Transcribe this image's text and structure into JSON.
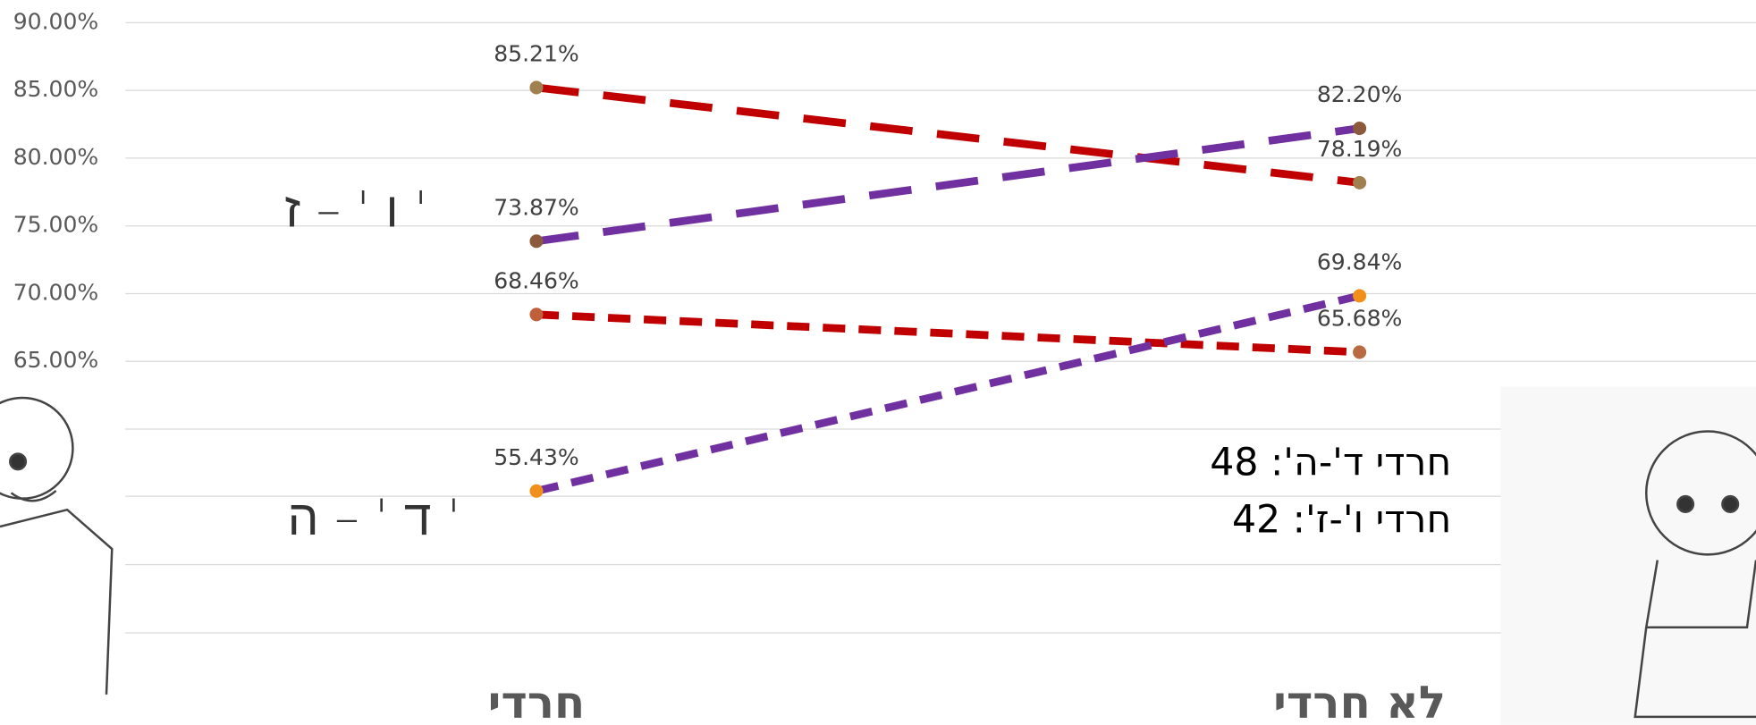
{
  "chart_data": {
    "type": "line",
    "categories": [
      "חרדי",
      "לא חרדי"
    ],
    "series": [
      {
        "color": "#c00000",
        "dash": "long",
        "values": [
          85.21,
          78.19
        ],
        "value_labels": [
          "85.21%",
          "78.19%"
        ],
        "marker_colors": [
          "#a0804f",
          "#a0804f"
        ]
      },
      {
        "color": "#7030a0",
        "dash": "long",
        "values": [
          73.87,
          82.2
        ],
        "value_labels": [
          "73.87%",
          "82.20%"
        ],
        "marker_colors": [
          "#8b5a3c",
          "#8b5a3c"
        ]
      },
      {
        "color": "#c00000",
        "dash": "short",
        "values": [
          68.46,
          65.68
        ],
        "value_labels": [
          "68.46%",
          "65.68%"
        ],
        "marker_colors": [
          "#c0603a",
          "#b86a40"
        ]
      },
      {
        "color": "#7030a0",
        "dash": "short",
        "values": [
          55.43,
          69.84
        ],
        "value_labels": [
          "55.43%",
          "69.84%"
        ],
        "marker_colors": [
          "#f0901a",
          "#f0901a"
        ]
      }
    ],
    "ylim": [
      40,
      90
    ],
    "yticks": [
      {
        "value": 65,
        "label": "65.00%"
      },
      {
        "value": 70,
        "label": "70.00%"
      },
      {
        "value": 75,
        "label": "75.00%"
      },
      {
        "value": 80,
        "label": "80.00%"
      },
      {
        "value": 85,
        "label": "85.00%"
      },
      {
        "value": 90,
        "label": "90.00%"
      }
    ],
    "grid": true,
    "group_labels": [
      "ו ' – ז '",
      "ד ' – ה '"
    ],
    "annotations": [
      "חרדי ד'-ה': 48",
      "חרדי ו'-ז': 42"
    ]
  }
}
